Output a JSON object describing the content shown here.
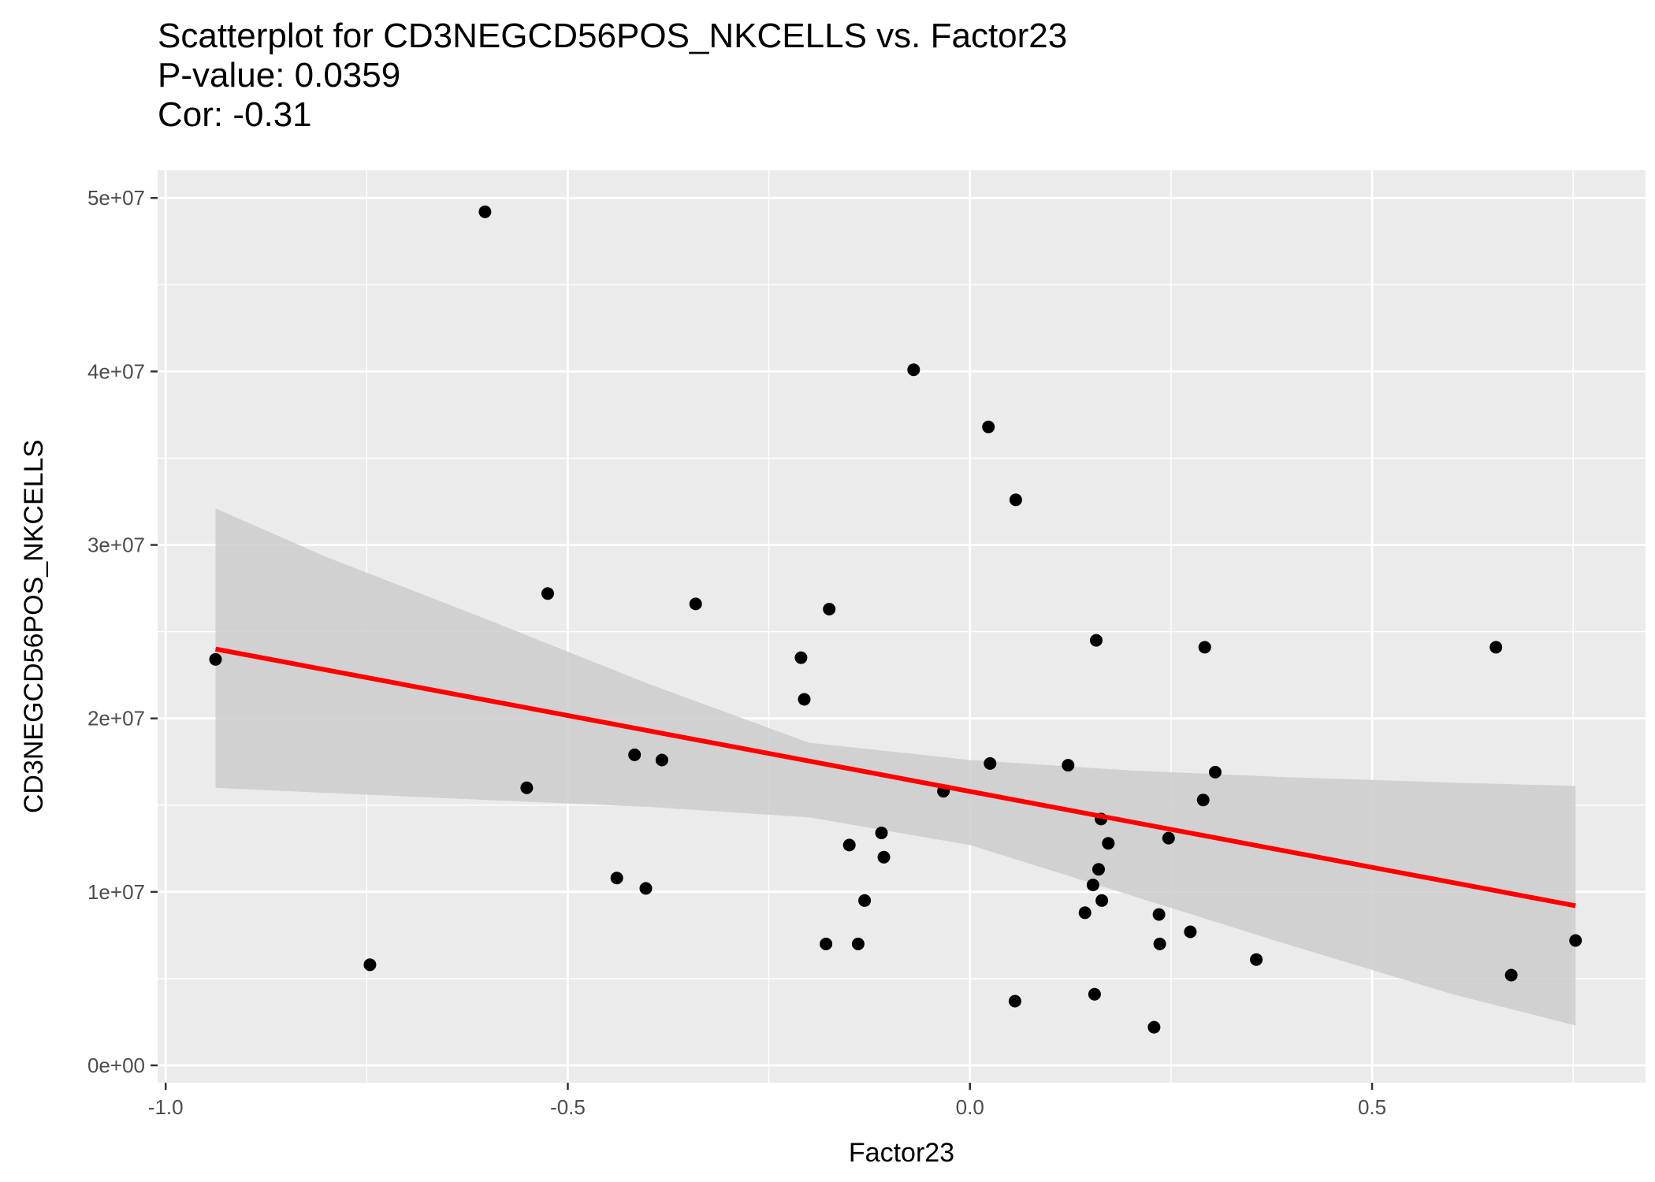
{
  "chart_data": {
    "type": "scatter",
    "title_lines": [
      "Scatterplot for CD3NEGCD56POS_NKCELLS vs. Factor23",
      "P-value: 0.0359",
      "Cor: -0.31"
    ],
    "xlabel": "Factor23",
    "ylabel": "CD3NEGCD56POS_NKCELLS",
    "xlim": [
      -1.01,
      0.84
    ],
    "ylim": [
      -1000000.0,
      51600000.0
    ],
    "x_ticks": [
      {
        "value": -1.0,
        "label": "-1.0"
      },
      {
        "value": -0.5,
        "label": "-0.5"
      },
      {
        "value": 0.0,
        "label": "0.0"
      },
      {
        "value": 0.5,
        "label": "0.5"
      }
    ],
    "y_ticks": [
      {
        "value": 0,
        "label": "0e+00"
      },
      {
        "value": 10000000,
        "label": "1e+07"
      },
      {
        "value": 20000000,
        "label": "2e+07"
      },
      {
        "value": 30000000,
        "label": "3e+07"
      },
      {
        "value": 40000000,
        "label": "4e+07"
      },
      {
        "value": 50000000,
        "label": "5e+07"
      }
    ],
    "grid": true,
    "background_color": "#ebebeb",
    "point_color": "#000000",
    "fit_line_color": "#ff0000",
    "ribbon_color": "#cccccc",
    "points": [
      {
        "x": -0.938,
        "y": 23400000
      },
      {
        "x": -0.746,
        "y": 5800000
      },
      {
        "x": -0.603,
        "y": 49200000
      },
      {
        "x": -0.551,
        "y": 16000000
      },
      {
        "x": -0.525,
        "y": 27200000
      },
      {
        "x": -0.439,
        "y": 10800000
      },
      {
        "x": -0.417,
        "y": 17900000
      },
      {
        "x": -0.403,
        "y": 10200000
      },
      {
        "x": -0.383,
        "y": 17600000
      },
      {
        "x": -0.341,
        "y": 26600000
      },
      {
        "x": -0.21,
        "y": 23500000
      },
      {
        "x": -0.206,
        "y": 21100000
      },
      {
        "x": -0.179,
        "y": 7000000
      },
      {
        "x": -0.175,
        "y": 26300000
      },
      {
        "x": -0.15,
        "y": 12700000
      },
      {
        "x": -0.139,
        "y": 7000000
      },
      {
        "x": -0.131,
        "y": 9500000
      },
      {
        "x": -0.11,
        "y": 13400000
      },
      {
        "x": -0.107,
        "y": 12000000
      },
      {
        "x": -0.07,
        "y": 40100000
      },
      {
        "x": -0.033,
        "y": 15800000
      },
      {
        "x": 0.023,
        "y": 36800000
      },
      {
        "x": 0.025,
        "y": 17400000
      },
      {
        "x": 0.056,
        "y": 3700000
      },
      {
        "x": 0.057,
        "y": 32600000
      },
      {
        "x": 0.122,
        "y": 17300000
      },
      {
        "x": 0.143,
        "y": 8800000
      },
      {
        "x": 0.153,
        "y": 10400000
      },
      {
        "x": 0.155,
        "y": 4100000
      },
      {
        "x": 0.157,
        "y": 24500000
      },
      {
        "x": 0.16,
        "y": 11300000
      },
      {
        "x": 0.163,
        "y": 14200000
      },
      {
        "x": 0.164,
        "y": 9500000
      },
      {
        "x": 0.172,
        "y": 12800000
      },
      {
        "x": 0.229,
        "y": 2200000
      },
      {
        "x": 0.235,
        "y": 8700000
      },
      {
        "x": 0.236,
        "y": 7000000
      },
      {
        "x": 0.247,
        "y": 13100000
      },
      {
        "x": 0.274,
        "y": 7700000
      },
      {
        "x": 0.29,
        "y": 15300000
      },
      {
        "x": 0.292,
        "y": 24100000
      },
      {
        "x": 0.305,
        "y": 16900000
      },
      {
        "x": 0.356,
        "y": 6100000
      },
      {
        "x": 0.654,
        "y": 24100000
      },
      {
        "x": 0.673,
        "y": 5200000
      },
      {
        "x": 0.753,
        "y": 7200000
      }
    ],
    "fit_line": {
      "x": [
        -0.938,
        0.753
      ],
      "y": [
        24000000,
        9200000
      ]
    },
    "confidence_band": {
      "x": [
        -0.938,
        -0.8,
        -0.6,
        -0.4,
        -0.2,
        0.0,
        0.2,
        0.4,
        0.6,
        0.753
      ],
      "lower": [
        16000000,
        15700000,
        15300000,
        14900000,
        14300000,
        12700000,
        9800000,
        6900000,
        4100000,
        2300000
      ],
      "upper": [
        32100000,
        29300000,
        25700000,
        22000000,
        18600000,
        17600000,
        17000000,
        16600000,
        16300000,
        16100000
      ]
    }
  }
}
